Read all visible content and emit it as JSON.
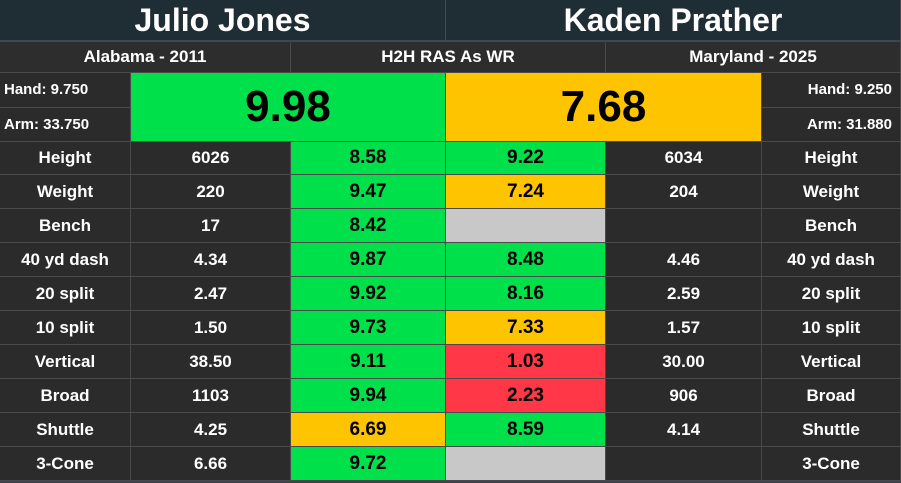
{
  "player_left": {
    "name": "Julio Jones",
    "school_year": "Alabama - 2011",
    "hand": "Hand: 9.750",
    "arm": "Arm: 33.750",
    "ras": "9.98",
    "ras_color": "#00e04a"
  },
  "player_right": {
    "name": "Kaden Prather",
    "school_year": "Maryland - 2025",
    "hand": "Hand: 9.250",
    "arm": "Arm: 31.880",
    "ras": "7.68",
    "ras_color": "#ffc400"
  },
  "comparison_label": "H2H RAS As WR",
  "rows": [
    {
      "label": "Height",
      "left_value": "6026",
      "left_score": "8.58",
      "left_color": "g",
      "right_score": "9.22",
      "right_color": "g",
      "right_value": "6034"
    },
    {
      "label": "Weight",
      "left_value": "220",
      "left_score": "9.47",
      "left_color": "g",
      "right_score": "7.24",
      "right_color": "y",
      "right_value": "204"
    },
    {
      "label": "Bench",
      "left_value": "17",
      "left_score": "8.42",
      "left_color": "g",
      "right_score": "",
      "right_color": "n",
      "right_value": ""
    },
    {
      "label": "40 yd dash",
      "left_value": "4.34",
      "left_score": "9.87",
      "left_color": "g",
      "right_score": "8.48",
      "right_color": "g",
      "right_value": "4.46"
    },
    {
      "label": "20 split",
      "left_value": "2.47",
      "left_score": "9.92",
      "left_color": "g",
      "right_score": "8.16",
      "right_color": "g",
      "right_value": "2.59"
    },
    {
      "label": "10 split",
      "left_value": "1.50",
      "left_score": "9.73",
      "left_color": "g",
      "right_score": "7.33",
      "right_color": "y",
      "right_value": "1.57"
    },
    {
      "label": "Vertical",
      "left_value": "38.50",
      "left_score": "9.11",
      "left_color": "g",
      "right_score": "1.03",
      "right_color": "r",
      "right_value": "30.00"
    },
    {
      "label": "Broad",
      "left_value": "1103",
      "left_score": "9.94",
      "left_color": "g",
      "right_score": "2.23",
      "right_color": "r",
      "right_value": "906"
    },
    {
      "label": "Shuttle",
      "left_value": "4.25",
      "left_score": "6.69",
      "left_color": "y",
      "right_score": "8.59",
      "right_color": "g",
      "right_value": "4.14"
    },
    {
      "label": "3-Cone",
      "left_value": "6.66",
      "left_score": "9.72",
      "left_color": "g",
      "right_score": "",
      "right_color": "n",
      "right_value": ""
    }
  ],
  "colors": {
    "green": "#00e04a",
    "yellow": "#ffc400",
    "red": "#ff3747",
    "empty": "#c8c8c8"
  }
}
